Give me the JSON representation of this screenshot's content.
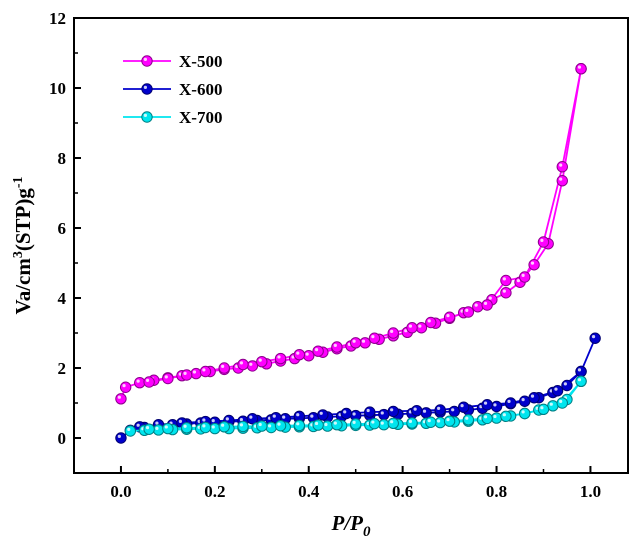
{
  "chart_data": {
    "type": "scatter",
    "xlabel_main": "P/P",
    "xlabel_sub": "0",
    "ylabel_main": "Va/cm",
    "ylabel_sup1": "3",
    "ylabel_mid": "(STP)g",
    "ylabel_sup2": "-1",
    "xlim": [
      -0.1,
      1.08
    ],
    "ylim": [
      -1,
      12
    ],
    "xticks": [
      0.0,
      0.2,
      0.4,
      0.6,
      0.8,
      1.0
    ],
    "xtick_labels": [
      "0.0",
      "0.2",
      "0.4",
      "0.6",
      "0.8",
      "1.0"
    ],
    "yticks": [
      0,
      2,
      4,
      6,
      8,
      10,
      12
    ],
    "ytick_labels": [
      "0",
      "2",
      "4",
      "6",
      "8",
      "10",
      "12"
    ],
    "legend_position": "top-left",
    "series": [
      {
        "name": "X-500",
        "color": "#ff00ff",
        "adsorption": {
          "x": [
            0.0,
            0.01,
            0.04,
            0.07,
            0.1,
            0.13,
            0.16,
            0.19,
            0.22,
            0.25,
            0.28,
            0.31,
            0.34,
            0.37,
            0.4,
            0.43,
            0.46,
            0.49,
            0.52,
            0.55,
            0.58,
            0.61,
            0.64,
            0.67,
            0.7,
            0.73,
            0.76,
            0.79,
            0.82,
            0.85,
            0.88,
            0.91,
            0.94,
            0.98
          ],
          "y": [
            1.12,
            1.45,
            1.58,
            1.65,
            1.72,
            1.78,
            1.84,
            1.9,
            1.96,
            2.0,
            2.06,
            2.12,
            2.2,
            2.27,
            2.35,
            2.45,
            2.55,
            2.63,
            2.72,
            2.82,
            2.92,
            3.02,
            3.15,
            3.28,
            3.42,
            3.58,
            3.75,
            3.95,
            4.15,
            4.45,
            4.95,
            5.55,
            7.35,
            10.55
          ]
        },
        "desorption": {
          "x": [
            0.98,
            0.94,
            0.9,
            0.86,
            0.82,
            0.78,
            0.74,
            0.7,
            0.66,
            0.62,
            0.58,
            0.54,
            0.5,
            0.46,
            0.42,
            0.38,
            0.34,
            0.3,
            0.26,
            0.22,
            0.18,
            0.14,
            0.1,
            0.06
          ],
          "y": [
            10.55,
            7.75,
            5.6,
            4.6,
            4.5,
            3.8,
            3.6,
            3.45,
            3.3,
            3.15,
            3.0,
            2.85,
            2.72,
            2.6,
            2.48,
            2.38,
            2.27,
            2.18,
            2.1,
            2.0,
            1.9,
            1.8,
            1.7,
            1.6
          ]
        }
      },
      {
        "name": "X-600",
        "color": "#0000cc",
        "adsorption": {
          "x": [
            0.0,
            0.02,
            0.05,
            0.08,
            0.11,
            0.14,
            0.17,
            0.2,
            0.23,
            0.26,
            0.29,
            0.32,
            0.35,
            0.38,
            0.41,
            0.44,
            0.47,
            0.5,
            0.53,
            0.56,
            0.59,
            0.62,
            0.65,
            0.68,
            0.71,
            0.74,
            0.77,
            0.8,
            0.83,
            0.86,
            0.89,
            0.92,
            0.95,
            0.98,
            1.01
          ],
          "y": [
            0.0,
            0.22,
            0.3,
            0.35,
            0.38,
            0.4,
            0.43,
            0.45,
            0.47,
            0.48,
            0.5,
            0.52,
            0.55,
            0.56,
            0.58,
            0.6,
            0.62,
            0.64,
            0.65,
            0.67,
            0.68,
            0.7,
            0.72,
            0.74,
            0.76,
            0.8,
            0.85,
            0.9,
            0.98,
            1.05,
            1.15,
            1.3,
            1.5,
            1.9,
            2.85
          ]
        },
        "desorption": {
          "x": [
            0.98,
            0.93,
            0.88,
            0.83,
            0.78,
            0.73,
            0.68,
            0.63,
            0.58,
            0.53,
            0.48,
            0.43,
            0.38,
            0.33,
            0.28,
            0.23,
            0.18,
            0.13,
            0.08,
            0.04
          ],
          "y": [
            1.9,
            1.35,
            1.15,
            1.0,
            0.95,
            0.88,
            0.8,
            0.78,
            0.76,
            0.74,
            0.7,
            0.66,
            0.62,
            0.58,
            0.55,
            0.5,
            0.47,
            0.43,
            0.38,
            0.32
          ]
        }
      },
      {
        "name": "X-700",
        "color": "#00e5ee",
        "adsorption": {
          "x": [
            0.02,
            0.05,
            0.08,
            0.11,
            0.14,
            0.17,
            0.2,
            0.23,
            0.26,
            0.29,
            0.32,
            0.35,
            0.38,
            0.41,
            0.44,
            0.47,
            0.5,
            0.53,
            0.56,
            0.59,
            0.62,
            0.65,
            0.68,
            0.71,
            0.74,
            0.77,
            0.8,
            0.83,
            0.86,
            0.89,
            0.92,
            0.95,
            0.98
          ],
          "y": [
            0.2,
            0.22,
            0.23,
            0.24,
            0.25,
            0.26,
            0.27,
            0.27,
            0.28,
            0.29,
            0.3,
            0.31,
            0.32,
            0.33,
            0.34,
            0.35,
            0.36,
            0.37,
            0.38,
            0.39,
            0.4,
            0.42,
            0.44,
            0.46,
            0.48,
            0.52,
            0.57,
            0.63,
            0.7,
            0.8,
            0.92,
            1.1,
            1.62
          ]
        },
        "desorption": {
          "x": [
            0.98,
            0.94,
            0.9,
            0.86,
            0.82,
            0.78,
            0.74,
            0.7,
            0.66,
            0.62,
            0.58,
            0.54,
            0.5,
            0.46,
            0.42,
            0.38,
            0.34,
            0.3,
            0.26,
            0.22,
            0.18,
            0.14,
            0.1,
            0.06
          ],
          "y": [
            1.62,
            1.0,
            0.82,
            0.7,
            0.62,
            0.56,
            0.52,
            0.48,
            0.45,
            0.43,
            0.42,
            0.41,
            0.4,
            0.38,
            0.37,
            0.36,
            0.35,
            0.34,
            0.33,
            0.32,
            0.3,
            0.29,
            0.27,
            0.25
          ]
        }
      }
    ]
  }
}
